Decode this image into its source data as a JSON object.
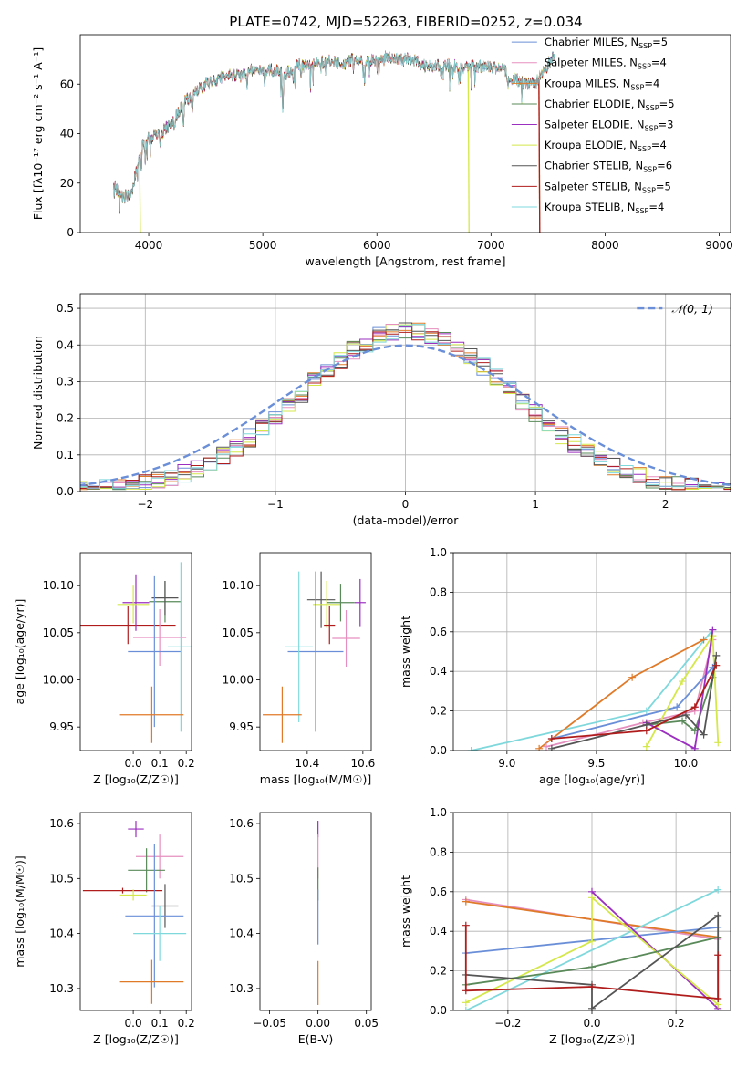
{
  "figure": {
    "title": "PLATE=0742, MJD=52263, FIBERID=0252, z=0.034"
  },
  "colors": {
    "Chabrier MILES": "#6a8fd8",
    "Salpeter MILES": "#e58fbf",
    "Kroupa MILES": "#e07a28",
    "Chabrier ELODIE": "#5a8a5a",
    "Salpeter ELODIE": "#9b2fbf",
    "Kroupa ELODIE": "#d4e84a",
    "Chabrier STELIB": "#555555",
    "Salpeter STELIB": "#b01c1c",
    "Kroupa STELIB": "#7fd8dc",
    "normal": "#6a8fd8"
  },
  "chart_data": [
    {
      "id": "spectrum",
      "type": "line",
      "xlabel": "wavelength [Angstrom, rest frame]",
      "ylabel": "Flux [fλ10⁻¹⁷ erg cm⁻² s⁻¹ A⁻¹]",
      "xlim": [
        3400,
        9100
      ],
      "ylim": [
        0,
        80
      ],
      "xticks": [
        4000,
        5000,
        6000,
        7000,
        8000,
        9000
      ],
      "yticks": [
        0,
        20,
        40,
        60
      ],
      "legend": "upper right",
      "legend_entries": [
        {
          "model": "Chabrier MILES",
          "nssp": "5"
        },
        {
          "model": "Salpeter MILES",
          "nssp": "4"
        },
        {
          "model": "Kroupa MILES",
          "nssp": "4"
        },
        {
          "model": "Chabrier ELODIE",
          "nssp": "5"
        },
        {
          "model": "Salpeter ELODIE",
          "nssp": "3"
        },
        {
          "model": "Kroupa ELODIE",
          "nssp": "4"
        },
        {
          "model": "Chabrier STELIB",
          "nssp": "6"
        },
        {
          "model": "Salpeter STELIB",
          "nssp": "5"
        },
        {
          "model": "Kroupa STELIB",
          "nssp": "4"
        }
      ],
      "continuum": [
        [
          3700,
          19
        ],
        [
          3760,
          14
        ],
        [
          3850,
          16
        ],
        [
          3900,
          27
        ],
        [
          3950,
          36
        ],
        [
          4000,
          38
        ],
        [
          4100,
          40
        ],
        [
          4200,
          44
        ],
        [
          4300,
          52
        ],
        [
          4400,
          56
        ],
        [
          4500,
          60
        ],
        [
          4600,
          62
        ],
        [
          4700,
          64
        ],
        [
          4800,
          63
        ],
        [
          4900,
          66
        ],
        [
          5000,
          65
        ],
        [
          5100,
          66
        ],
        [
          5200,
          64
        ],
        [
          5300,
          68
        ],
        [
          5400,
          67
        ],
        [
          5500,
          69
        ],
        [
          5600,
          69
        ],
        [
          5700,
          68
        ],
        [
          5800,
          70
        ],
        [
          5900,
          69
        ],
        [
          6000,
          70
        ],
        [
          6100,
          71
        ],
        [
          6200,
          70
        ],
        [
          6300,
          70
        ],
        [
          6400,
          68
        ],
        [
          6500,
          67
        ],
        [
          6600,
          68
        ],
        [
          6700,
          67
        ],
        [
          6800,
          67
        ],
        [
          6900,
          67
        ],
        [
          7000,
          67
        ],
        [
          7100,
          66
        ],
        [
          7200,
          62
        ],
        [
          7300,
          60
        ],
        [
          7400,
          61
        ],
        [
          7500,
          68
        ],
        [
          7550,
          71
        ]
      ],
      "absorption_lines": [
        [
          3934,
          8
        ],
        [
          3969,
          7
        ],
        [
          4102,
          6
        ],
        [
          4227,
          5
        ],
        [
          4304,
          10
        ],
        [
          4383,
          6
        ],
        [
          4861,
          5
        ],
        [
          5015,
          4
        ],
        [
          5175,
          15
        ],
        [
          5270,
          6
        ],
        [
          5335,
          5
        ],
        [
          5892,
          10
        ],
        [
          6563,
          5
        ],
        [
          7150,
          4
        ],
        [
          7600,
          12
        ]
      ],
      "cutoffs": [
        {
          "model": "Kroupa ELODIE",
          "x": 6800
        },
        {
          "model": "Salpeter STELIB",
          "x": 7420
        },
        {
          "model": "Kroupa MILES",
          "x": 7420
        },
        {
          "model": "Kroupa ELODIE",
          "x": 3920
        }
      ]
    },
    {
      "id": "residuals",
      "type": "line",
      "xlabel": "(data-model)/error",
      "ylabel": "Normed distribution",
      "xlim": [
        -2.5,
        2.5
      ],
      "ylim": [
        0,
        0.54
      ],
      "xticks": [
        -2,
        -1,
        0,
        1,
        2
      ],
      "yticks": [
        0.0,
        0.1,
        0.2,
        0.3,
        0.4,
        0.5
      ],
      "grid": true,
      "legend": "upper right",
      "normal_label": "𝒩(0, 1)",
      "bin_width": 0.1
    },
    {
      "id": "age_vs_Z",
      "type": "scatter",
      "xlabel": "Z [log₁₀(Z/Z☉)]",
      "ylabel": "age  [log₁₀(age/yr)]",
      "xlim": [
        -0.2,
        0.22
      ],
      "ylim": [
        9.925,
        10.135
      ],
      "xticks": [
        0.0,
        0.1,
        0.2
      ],
      "yticks": [
        9.95,
        10.0,
        10.05,
        10.1
      ],
      "points": [
        {
          "model": "Salpeter STELIB",
          "x": -0.02,
          "y": 10.058,
          "xerr": 0.18,
          "yerr": 0.02
        },
        {
          "model": "Salpeter ELODIE",
          "x": 0.01,
          "y": 10.082,
          "xerr": 0.05,
          "yerr": 0.03
        },
        {
          "model": "Kroupa ELODIE",
          "x": 0.0,
          "y": 10.08,
          "xerr": 0.06,
          "yerr": 0.02
        },
        {
          "model": "Salpeter MILES",
          "x": 0.1,
          "y": 10.045,
          "xerr": 0.1,
          "yerr": 0.03
        },
        {
          "model": "Chabrier ELODIE",
          "x": 0.12,
          "y": 10.083,
          "xerr": 0.06,
          "yerr": 0.022
        },
        {
          "model": "Chabrier STELIB",
          "x": 0.12,
          "y": 10.087,
          "xerr": 0.05,
          "yerr": 0.018
        },
        {
          "model": "Chabrier MILES",
          "x": 0.08,
          "y": 10.03,
          "xerr": 0.1,
          "yerr": 0.08
        },
        {
          "model": "Kroupa STELIB",
          "x": 0.18,
          "y": 10.035,
          "xerr": 0.05,
          "yerr": 0.09
        },
        {
          "model": "Kroupa MILES",
          "x": 0.07,
          "y": 9.963,
          "xerr": 0.12,
          "yerr": 0.03
        }
      ]
    },
    {
      "id": "age_vs_mass",
      "type": "scatter",
      "xlabel": "mass [log₁₀(M/M☉)]",
      "ylabel": "",
      "xlim": [
        10.23,
        10.63
      ],
      "ylim": [
        9.925,
        10.135
      ],
      "xticks": [
        10.4,
        10.6
      ],
      "yticks": [
        9.95,
        10.0,
        10.05,
        10.1
      ],
      "points": [
        {
          "model": "Salpeter ELODIE",
          "x": 10.59,
          "y": 10.082,
          "xerr": 0.02,
          "yerr": 0.025
        },
        {
          "model": "Chabrier STELIB",
          "x": 10.45,
          "y": 10.085,
          "xerr": 0.05,
          "yerr": 0.03
        },
        {
          "model": "Kroupa ELODIE",
          "x": 10.47,
          "y": 10.08,
          "xerr": 0.05,
          "yerr": 0.025
        },
        {
          "model": "Chabrier ELODIE",
          "x": 10.52,
          "y": 10.082,
          "xerr": 0.05,
          "yerr": 0.02
        },
        {
          "model": "Salpeter STELIB",
          "x": 10.48,
          "y": 10.058,
          "xerr": 0.02,
          "yerr": 0.02
        },
        {
          "model": "Salpeter MILES",
          "x": 10.54,
          "y": 10.044,
          "xerr": 0.05,
          "yerr": 0.03
        },
        {
          "model": "Chabrier MILES",
          "x": 10.43,
          "y": 10.03,
          "xerr": 0.1,
          "yerr": 0.085
        },
        {
          "model": "Kroupa STELIB",
          "x": 10.37,
          "y": 10.035,
          "xerr": 0.05,
          "yerr": 0.08
        },
        {
          "model": "Kroupa MILES",
          "x": 10.31,
          "y": 9.963,
          "xerr": 0.07,
          "yerr": 0.03
        }
      ]
    },
    {
      "id": "weight_vs_age",
      "type": "line",
      "xlabel": "age  [log₁₀(age/yr)]",
      "ylabel": "mass weight",
      "xlim": [
        8.7,
        10.25
      ],
      "ylim": [
        0,
        1
      ],
      "xticks": [
        9.0,
        9.5,
        10.0
      ],
      "yticks": [
        0.0,
        0.2,
        0.4,
        0.6,
        0.8,
        1.0
      ],
      "grid": true,
      "series": [
        {
          "model": "Kroupa STELIB",
          "x": [
            8.8,
            9.78,
            10.15
          ],
          "y": [
            0.0,
            0.2,
            0.61
          ]
        },
        {
          "model": "Kroupa MILES",
          "x": [
            9.18,
            9.7,
            10.1
          ],
          "y": [
            0.01,
            0.37,
            0.56
          ]
        },
        {
          "model": "Salpeter MILES",
          "x": [
            9.22,
            9.76,
            10.05,
            10.15
          ],
          "y": [
            0.02,
            0.14,
            0.2,
            0.56
          ]
        },
        {
          "model": "Chabrier MILES",
          "x": [
            9.25,
            9.95,
            10.15
          ],
          "y": [
            0.06,
            0.22,
            0.42
          ]
        },
        {
          "model": "Chabrier ELODIE",
          "x": [
            9.78,
            9.98,
            10.05,
            10.15
          ],
          "y": [
            0.13,
            0.15,
            0.1,
            0.37
          ]
        },
        {
          "model": "Kroupa ELODIE",
          "x": [
            9.78,
            9.98,
            10.15,
            10.18
          ],
          "y": [
            0.02,
            0.35,
            0.58,
            0.04
          ]
        },
        {
          "model": "Salpeter ELODIE",
          "x": [
            9.78,
            10.05,
            10.15
          ],
          "y": [
            0.14,
            0.01,
            0.61
          ]
        },
        {
          "model": "Chabrier STELIB",
          "x": [
            9.25,
            9.78,
            10.0,
            10.1,
            10.17
          ],
          "y": [
            0.01,
            0.13,
            0.18,
            0.08,
            0.48
          ]
        },
        {
          "model": "Salpeter STELIB",
          "x": [
            9.25,
            9.78,
            10.05,
            10.17
          ],
          "y": [
            0.06,
            0.1,
            0.22,
            0.43
          ]
        }
      ]
    },
    {
      "id": "mass_vs_Z",
      "type": "scatter",
      "xlabel": "Z [log₁₀(Z/Z☉)]",
      "ylabel": "mass [log₁₀(M/M☉)]",
      "xlim": [
        -0.2,
        0.22
      ],
      "ylim": [
        10.26,
        10.62
      ],
      "xticks": [
        0.0,
        0.1,
        0.2
      ],
      "yticks": [
        10.3,
        10.4,
        10.5,
        10.6
      ],
      "points": [
        {
          "model": "Salpeter ELODIE",
          "x": 0.01,
          "y": 10.59,
          "xerr": 0.03,
          "yerr": 0.015
        },
        {
          "model": "Salpeter MILES",
          "x": 0.1,
          "y": 10.54,
          "xerr": 0.09,
          "yerr": 0.04
        },
        {
          "model": "Chabrier ELODIE",
          "x": 0.05,
          "y": 10.515,
          "xerr": 0.07,
          "yerr": 0.04
        },
        {
          "model": "Salpeter STELIB",
          "x": -0.04,
          "y": 10.478,
          "xerr": 0.15,
          "yerr": 0.005
        },
        {
          "model": "Kroupa ELODIE",
          "x": 0.0,
          "y": 10.47,
          "xerr": 0.05,
          "yerr": 0.01
        },
        {
          "model": "Chabrier STELIB",
          "x": 0.12,
          "y": 10.45,
          "xerr": 0.05,
          "yerr": 0.04
        },
        {
          "model": "Chabrier MILES",
          "x": 0.08,
          "y": 10.432,
          "xerr": 0.11,
          "yerr": 0.13
        },
        {
          "model": "Kroupa STELIB",
          "x": 0.1,
          "y": 10.4,
          "xerr": 0.1,
          "yerr": 0.05
        },
        {
          "model": "Kroupa MILES",
          "x": 0.07,
          "y": 10.312,
          "xerr": 0.12,
          "yerr": 0.04
        }
      ]
    },
    {
      "id": "mass_vs_ebv",
      "type": "scatter",
      "xlabel": "E(B-V)",
      "ylabel": "",
      "xlim": [
        -0.06,
        0.055
      ],
      "ylim": [
        10.26,
        10.62
      ],
      "xticks": [
        -0.05,
        0.0,
        0.05
      ],
      "yticks": [
        10.3,
        10.4,
        10.5,
        10.6
      ],
      "points": [
        {
          "model": "Salpeter ELODIE",
          "x": 0.0,
          "y": 10.59,
          "xerr": 0.0,
          "yerr": 0.015
        },
        {
          "model": "Salpeter MILES",
          "x": 0.0,
          "y": 10.54,
          "xerr": 0.0,
          "yerr": 0.04
        },
        {
          "model": "Chabrier ELODIE",
          "x": 0.0,
          "y": 10.49,
          "xerr": 0.0,
          "yerr": 0.03
        },
        {
          "model": "Chabrier MILES",
          "x": 0.0,
          "y": 10.43,
          "xerr": 0.0,
          "yerr": 0.05
        },
        {
          "model": "Kroupa MILES",
          "x": 0.0,
          "y": 10.31,
          "xerr": 0.0,
          "yerr": 0.04
        }
      ]
    },
    {
      "id": "weight_vs_Z",
      "type": "line",
      "xlabel": "Z [log₁₀(Z/Z☉)]",
      "ylabel": "mass weight",
      "xlim": [
        -0.33,
        0.33
      ],
      "ylim": [
        0,
        1
      ],
      "xticks": [
        -0.2,
        0.0,
        0.2
      ],
      "yticks": [
        0.0,
        0.2,
        0.4,
        0.6,
        0.8,
        1.0
      ],
      "grid": true,
      "series": [
        {
          "model": "Salpeter MILES",
          "x": [
            -0.3,
            0.3
          ],
          "y": [
            0.56,
            0.36
          ]
        },
        {
          "model": "Kroupa MILES",
          "x": [
            -0.3,
            0.3
          ],
          "y": [
            0.55,
            0.37
          ]
        },
        {
          "model": "Chabrier MILES",
          "x": [
            -0.3,
            0.3
          ],
          "y": [
            0.29,
            0.42
          ]
        },
        {
          "model": "Kroupa STELIB",
          "x": [
            -0.3,
            0.3
          ],
          "y": [
            0.0,
            0.61
          ]
        },
        {
          "model": "Salpeter ELODIE",
          "x": [
            0.0,
            0.3
          ],
          "y": [
            0.6,
            0.01
          ]
        },
        {
          "model": "Kroupa ELODIE",
          "x": [
            -0.3,
            0.0,
            0.0,
            0.3
          ],
          "y": [
            0.04,
            0.35,
            0.57,
            0.03
          ]
        },
        {
          "model": "Chabrier ELODIE",
          "x": [
            -0.3,
            0.0,
            0.3
          ],
          "y": [
            0.13,
            0.22,
            0.37
          ]
        },
        {
          "model": "Chabrier STELIB",
          "x": [
            -0.3,
            0.0,
            0.0,
            0.3,
            0.3
          ],
          "y": [
            0.18,
            0.13,
            0.01,
            0.48,
            0.06
          ]
        },
        {
          "model": "Salpeter STELIB",
          "x": [
            -0.3,
            -0.3,
            0.0,
            0.3,
            0.3
          ],
          "y": [
            0.43,
            0.1,
            0.12,
            0.06,
            0.28
          ]
        }
      ]
    }
  ]
}
